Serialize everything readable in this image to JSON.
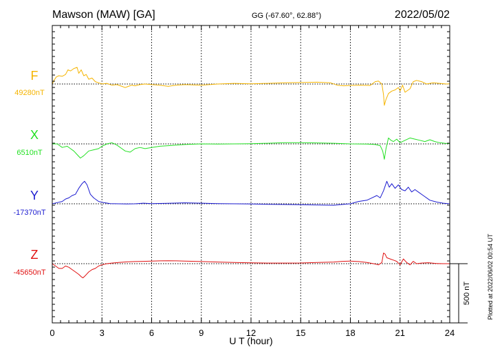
{
  "header": {
    "station": "Mawson (MAW)  [GA]",
    "coords": "GG (-67.60°,  62.88°)",
    "date": "2022/05/02"
  },
  "side_note": "Plotted at 2022/06/02 00:54 UT",
  "scale_label": "500 nT",
  "colors": {
    "F": "#f5b400",
    "X": "#22e022",
    "Y": "#1a1ad0",
    "Z": "#e01010"
  },
  "chart_data": {
    "type": "line",
    "title": "Mawson (MAW)  [GA]",
    "xlabel": "U T (hour)",
    "xlim": [
      0,
      24
    ],
    "xticks": [
      "0",
      "3",
      "6",
      "9",
      "12",
      "15",
      "18",
      "21",
      "24"
    ],
    "scale_bar_nT": 500,
    "grid": "dotted vertical every 3 h",
    "series": [
      {
        "name": "F",
        "baseline": "49280nT",
        "baseline_nT": 49280,
        "points": [
          [
            0,
            49280
          ],
          [
            0.1,
            49310
          ],
          [
            0.25,
            49340
          ],
          [
            0.4,
            49350
          ],
          [
            0.6,
            49345
          ],
          [
            0.8,
            49360
          ],
          [
            0.95,
            49400
          ],
          [
            1.1,
            49390
          ],
          [
            1.3,
            49410
          ],
          [
            1.5,
            49420
          ],
          [
            1.6,
            49370
          ],
          [
            1.75,
            49400
          ],
          [
            1.9,
            49350
          ],
          [
            2.05,
            49360
          ],
          [
            2.2,
            49320
          ],
          [
            2.4,
            49330
          ],
          [
            2.6,
            49300
          ],
          [
            2.8,
            49290
          ],
          [
            3.0,
            49280
          ],
          [
            3.3,
            49285
          ],
          [
            3.6,
            49270
          ],
          [
            3.9,
            49275
          ],
          [
            4.2,
            49260
          ],
          [
            4.4,
            49250
          ],
          [
            4.6,
            49260
          ],
          [
            4.8,
            49270
          ],
          [
            5.0,
            49265
          ],
          [
            5.3,
            49275
          ],
          [
            5.6,
            49280
          ],
          [
            6.0,
            49275
          ],
          [
            6.5,
            49270
          ],
          [
            7.0,
            49260
          ],
          [
            7.5,
            49270
          ],
          [
            8.0,
            49275
          ],
          [
            9.0,
            49270
          ],
          [
            10.0,
            49280
          ],
          [
            11.0,
            49285
          ],
          [
            12.0,
            49282
          ],
          [
            13.0,
            49285
          ],
          [
            14.0,
            49290
          ],
          [
            15.0,
            49292
          ],
          [
            16.0,
            49295
          ],
          [
            16.8,
            49290
          ],
          [
            17.2,
            49270
          ],
          [
            17.6,
            49265
          ],
          [
            18.0,
            49268
          ],
          [
            18.6,
            49270
          ],
          [
            19.2,
            49268
          ],
          [
            19.5,
            49300
          ],
          [
            19.7,
            49305
          ],
          [
            19.9,
            49280
          ],
          [
            20.0,
            49190
          ],
          [
            20.05,
            49100
          ],
          [
            20.15,
            49150
          ],
          [
            20.3,
            49200
          ],
          [
            20.5,
            49220
          ],
          [
            20.7,
            49230
          ],
          [
            20.9,
            49250
          ],
          [
            21.0,
            49220
          ],
          [
            21.15,
            49270
          ],
          [
            21.3,
            49210
          ],
          [
            21.5,
            49230
          ],
          [
            21.6,
            49240
          ],
          [
            21.8,
            49300
          ],
          [
            22.0,
            49310
          ],
          [
            22.3,
            49300
          ],
          [
            22.6,
            49280
          ],
          [
            23.0,
            49290
          ],
          [
            23.4,
            49285
          ],
          [
            23.8,
            49280
          ],
          [
            24.0,
            49282
          ]
        ]
      },
      {
        "name": "X",
        "baseline": "6510nT",
        "baseline_nT": 6510,
        "points": [
          [
            0,
            6510
          ],
          [
            0.3,
            6510
          ],
          [
            0.6,
            6480
          ],
          [
            0.9,
            6490
          ],
          [
            1.1,
            6470
          ],
          [
            1.3,
            6450
          ],
          [
            1.5,
            6420
          ],
          [
            1.7,
            6390
          ],
          [
            1.9,
            6410
          ],
          [
            2.2,
            6450
          ],
          [
            2.5,
            6460
          ],
          [
            2.8,
            6470
          ],
          [
            3.0,
            6490
          ],
          [
            3.3,
            6510
          ],
          [
            3.6,
            6520
          ],
          [
            3.9,
            6500
          ],
          [
            4.2,
            6470
          ],
          [
            4.4,
            6450
          ],
          [
            4.7,
            6440
          ],
          [
            5.0,
            6470
          ],
          [
            5.3,
            6480
          ],
          [
            5.6,
            6470
          ],
          [
            6.0,
            6480
          ],
          [
            6.5,
            6490
          ],
          [
            7.0,
            6495
          ],
          [
            7.5,
            6500
          ],
          [
            8.0,
            6505
          ],
          [
            9.0,
            6510
          ],
          [
            10.0,
            6508
          ],
          [
            11.0,
            6510
          ],
          [
            12.0,
            6512
          ],
          [
            13.0,
            6515
          ],
          [
            14.0,
            6520
          ],
          [
            15.0,
            6520
          ],
          [
            16.0,
            6518
          ],
          [
            17.0,
            6515
          ],
          [
            18.0,
            6510
          ],
          [
            19.0,
            6508
          ],
          [
            19.5,
            6505
          ],
          [
            19.8,
            6495
          ],
          [
            19.95,
            6450
          ],
          [
            20.05,
            6380
          ],
          [
            20.15,
            6470
          ],
          [
            20.3,
            6560
          ],
          [
            20.45,
            6540
          ],
          [
            20.6,
            6530
          ],
          [
            20.8,
            6550
          ],
          [
            21.0,
            6520
          ],
          [
            21.3,
            6540
          ],
          [
            21.6,
            6560
          ],
          [
            21.9,
            6550
          ],
          [
            22.2,
            6540
          ],
          [
            22.5,
            6530
          ],
          [
            22.8,
            6545
          ],
          [
            23.1,
            6530
          ],
          [
            23.4,
            6520
          ],
          [
            23.7,
            6515
          ],
          [
            24.0,
            6512
          ]
        ]
      },
      {
        "name": "Y",
        "baseline": "-17370nT",
        "baseline_nT": -17370,
        "points": [
          [
            0,
            -17370
          ],
          [
            0.3,
            -17360
          ],
          [
            0.6,
            -17350
          ],
          [
            0.8,
            -17330
          ],
          [
            1.0,
            -17320
          ],
          [
            1.2,
            -17300
          ],
          [
            1.4,
            -17290
          ],
          [
            1.6,
            -17240
          ],
          [
            1.8,
            -17200
          ],
          [
            1.95,
            -17180
          ],
          [
            2.1,
            -17210
          ],
          [
            2.3,
            -17290
          ],
          [
            2.5,
            -17320
          ],
          [
            2.8,
            -17350
          ],
          [
            3.1,
            -17360
          ],
          [
            3.5,
            -17368
          ],
          [
            4.0,
            -17370
          ],
          [
            4.5,
            -17372
          ],
          [
            5.0,
            -17370
          ],
          [
            5.5,
            -17365
          ],
          [
            6.0,
            -17368
          ],
          [
            7.0,
            -17366
          ],
          [
            8.0,
            -17362
          ],
          [
            9.0,
            -17365
          ],
          [
            10.0,
            -17368
          ],
          [
            11.0,
            -17370
          ],
          [
            12.0,
            -17372
          ],
          [
            13.0,
            -17374
          ],
          [
            14.0,
            -17376
          ],
          [
            15.0,
            -17378
          ],
          [
            16.0,
            -17380
          ],
          [
            17.0,
            -17382
          ],
          [
            18.0,
            -17370
          ],
          [
            18.5,
            -17350
          ],
          [
            19.0,
            -17340
          ],
          [
            19.3,
            -17320
          ],
          [
            19.6,
            -17300
          ],
          [
            19.8,
            -17320
          ],
          [
            20.0,
            -17260
          ],
          [
            20.2,
            -17180
          ],
          [
            20.35,
            -17230
          ],
          [
            20.5,
            -17200
          ],
          [
            20.7,
            -17240
          ],
          [
            20.9,
            -17210
          ],
          [
            21.1,
            -17250
          ],
          [
            21.3,
            -17260
          ],
          [
            21.5,
            -17230
          ],
          [
            21.7,
            -17270
          ],
          [
            21.9,
            -17250
          ],
          [
            22.1,
            -17270
          ],
          [
            22.4,
            -17300
          ],
          [
            22.8,
            -17340
          ],
          [
            23.2,
            -17355
          ],
          [
            23.6,
            -17365
          ],
          [
            24.0,
            -17370
          ]
        ]
      },
      {
        "name": "Z",
        "baseline": "-45650nT",
        "baseline_nT": -45650,
        "points": [
          [
            0,
            -45650
          ],
          [
            0.2,
            -45670
          ],
          [
            0.4,
            -45690
          ],
          [
            0.6,
            -45690
          ],
          [
            0.8,
            -45670
          ],
          [
            1.0,
            -45680
          ],
          [
            1.2,
            -45700
          ],
          [
            1.4,
            -45720
          ],
          [
            1.6,
            -45740
          ],
          [
            1.75,
            -45760
          ],
          [
            1.85,
            -45770
          ],
          [
            2.0,
            -45750
          ],
          [
            2.2,
            -45720
          ],
          [
            2.4,
            -45700
          ],
          [
            2.6,
            -45690
          ],
          [
            2.8,
            -45670
          ],
          [
            3.0,
            -45660
          ],
          [
            3.3,
            -45650
          ],
          [
            3.6,
            -45645
          ],
          [
            4.0,
            -45640
          ],
          [
            4.5,
            -45635
          ],
          [
            5.0,
            -45632
          ],
          [
            5.5,
            -45630
          ],
          [
            6.0,
            -45628
          ],
          [
            6.5,
            -45626
          ],
          [
            7.0,
            -45625
          ],
          [
            7.5,
            -45626
          ],
          [
            8.0,
            -45628
          ],
          [
            9.0,
            -45632
          ],
          [
            10.0,
            -45636
          ],
          [
            11.0,
            -45640
          ],
          [
            12.0,
            -45643
          ],
          [
            13.0,
            -45645
          ],
          [
            14.0,
            -45645
          ],
          [
            15.0,
            -45644
          ],
          [
            16.0,
            -45640
          ],
          [
            17.0,
            -45636
          ],
          [
            17.5,
            -45630
          ],
          [
            18.0,
            -45628
          ],
          [
            18.5,
            -45632
          ],
          [
            19.0,
            -45640
          ],
          [
            19.4,
            -45650
          ],
          [
            19.7,
            -45660
          ],
          [
            19.9,
            -45640
          ],
          [
            20.0,
            -45560
          ],
          [
            20.1,
            -45570
          ],
          [
            20.2,
            -45600
          ],
          [
            20.4,
            -45610
          ],
          [
            20.6,
            -45620
          ],
          [
            20.8,
            -45630
          ],
          [
            21.0,
            -45660
          ],
          [
            21.2,
            -45610
          ],
          [
            21.4,
            -45640
          ],
          [
            21.6,
            -45660
          ],
          [
            21.8,
            -45630
          ],
          [
            22.0,
            -45650
          ],
          [
            22.3,
            -45645
          ],
          [
            22.7,
            -45642
          ],
          [
            23.2,
            -45648
          ],
          [
            23.6,
            -45650
          ],
          [
            24.0,
            -45650
          ]
        ]
      }
    ]
  }
}
